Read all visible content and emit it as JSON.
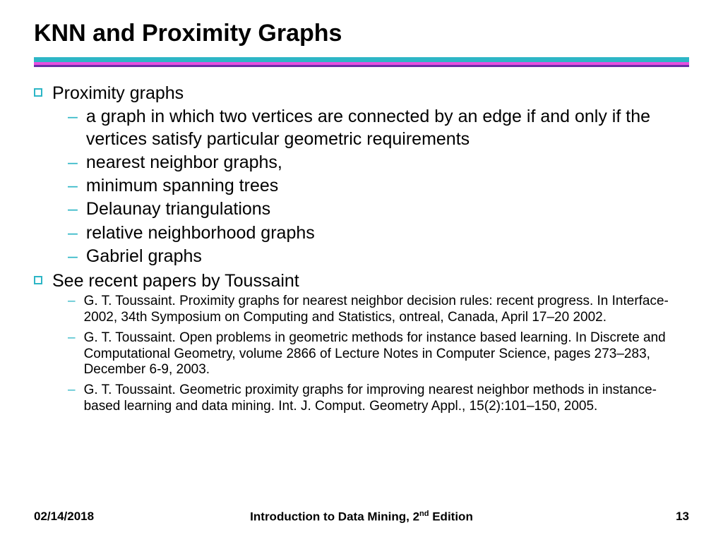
{
  "title": "KNN and Proximity Graphs",
  "colors": {
    "rule_top": "#2db6c6",
    "rule_mid": "#e64fe0",
    "rule_bot": "#6a2fa6",
    "bullet_border": "#2db6c6",
    "dash": "#2db6c6",
    "text": "#000000",
    "background": "#ffffff"
  },
  "typography": {
    "title_font": "Verdana",
    "title_size_pt": 26,
    "title_weight": "bold",
    "body_font": "Arial",
    "body_size_pt": 19,
    "ref_size_pt": 14,
    "footer_size_pt": 13,
    "footer_weight": "bold"
  },
  "bullets": [
    {
      "text": "Proximity graphs",
      "subs_style": "large",
      "subs": [
        "a graph in which two vertices are connected by an edge if and only if the vertices satisfy particular geometric requirements",
        "nearest neighbor graphs,",
        "minimum spanning trees",
        "Delaunay triangulations",
        "relative neighborhood graphs",
        "Gabriel graphs"
      ]
    },
    {
      "text": "See recent papers by Toussaint",
      "subs_style": "small",
      "subs": [
        "G. T. Toussaint. Proximity graphs for nearest neighbor decision rules: recent progress. In Interface-2002, 34th Symposium on Computing and Statistics, ontreal, Canada, April 17–20 2002.",
        "G. T. Toussaint. Open problems in geometric methods for instance based learning. In Discrete and Computational Geometry, volume 2866 of Lecture Notes in Computer Science, pages 273–283, December 6-9, 2003.",
        "G. T. Toussaint. Geometric proximity graphs for improving nearest neighbor methods in instance-based learning and data mining. Int. J. Comput. Geometry Appl., 15(2):101–150, 2005."
      ]
    }
  ],
  "footer": {
    "date": "02/14/2018",
    "book_prefix": "Introduction to Data Mining, 2",
    "book_sup": "nd",
    "book_suffix": " Edition",
    "page": "13"
  }
}
